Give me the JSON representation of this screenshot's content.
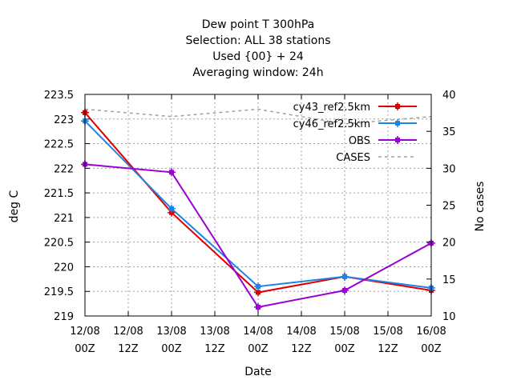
{
  "chart_data": {
    "type": "line",
    "title_lines": [
      "Dew point T 300hPa",
      "Selection: ALL      38 stations",
      "Used {00} + 24",
      "Averaging window: 24h"
    ],
    "xlabel": "Date",
    "ylabel": "deg C",
    "y2label": "No cases",
    "x_ticks": [
      {
        "l1": "12/08",
        "l2": "00Z"
      },
      {
        "l1": "12/08",
        "l2": "12Z"
      },
      {
        "l1": "13/08",
        "l2": "00Z"
      },
      {
        "l1": "13/08",
        "l2": "12Z"
      },
      {
        "l1": "14/08",
        "l2": "00Z"
      },
      {
        "l1": "14/08",
        "l2": "12Z"
      },
      {
        "l1": "15/08",
        "l2": "00Z"
      },
      {
        "l1": "15/08",
        "l2": "12Z"
      },
      {
        "l1": "16/08",
        "l2": "00Z"
      }
    ],
    "y_ticks": [
      "219",
      "219.5",
      "220",
      "220.5",
      "221",
      "221.5",
      "222",
      "222.5",
      "223",
      "223.5"
    ],
    "y_range": [
      219,
      223.5
    ],
    "y2_ticks": [
      "10",
      "15",
      "20",
      "25",
      "30",
      "35",
      "40"
    ],
    "y2_range": [
      10,
      40
    ],
    "x_range": [
      0,
      4
    ],
    "grid": true,
    "legend_position": "top-right",
    "series": [
      {
        "name": "cy43_ref2.5km",
        "color": "#dd0000",
        "axis": "y1",
        "style": "line-points",
        "x": [
          0,
          1,
          2,
          3,
          4
        ],
        "values": [
          223.13,
          221.1,
          219.48,
          219.8,
          219.52
        ]
      },
      {
        "name": "cy46_ref2.5km",
        "color": "#1e82e6",
        "axis": "y1",
        "style": "line-points",
        "x": [
          0,
          1,
          2,
          3,
          4
        ],
        "values": [
          222.96,
          221.18,
          219.6,
          219.8,
          219.57
        ]
      },
      {
        "name": "OBS",
        "color": "#9b00d4",
        "axis": "y1",
        "style": "line-points",
        "x": [
          0,
          1,
          2,
          3,
          4
        ],
        "values": [
          222.08,
          221.92,
          219.18,
          219.52,
          220.48
        ]
      },
      {
        "name": "CASES",
        "color": "#a0a0a0",
        "axis": "y2",
        "style": "dashed",
        "x": [
          0,
          1,
          2,
          3,
          4
        ],
        "values": [
          38,
          37,
          38,
          36,
          37
        ]
      }
    ]
  }
}
